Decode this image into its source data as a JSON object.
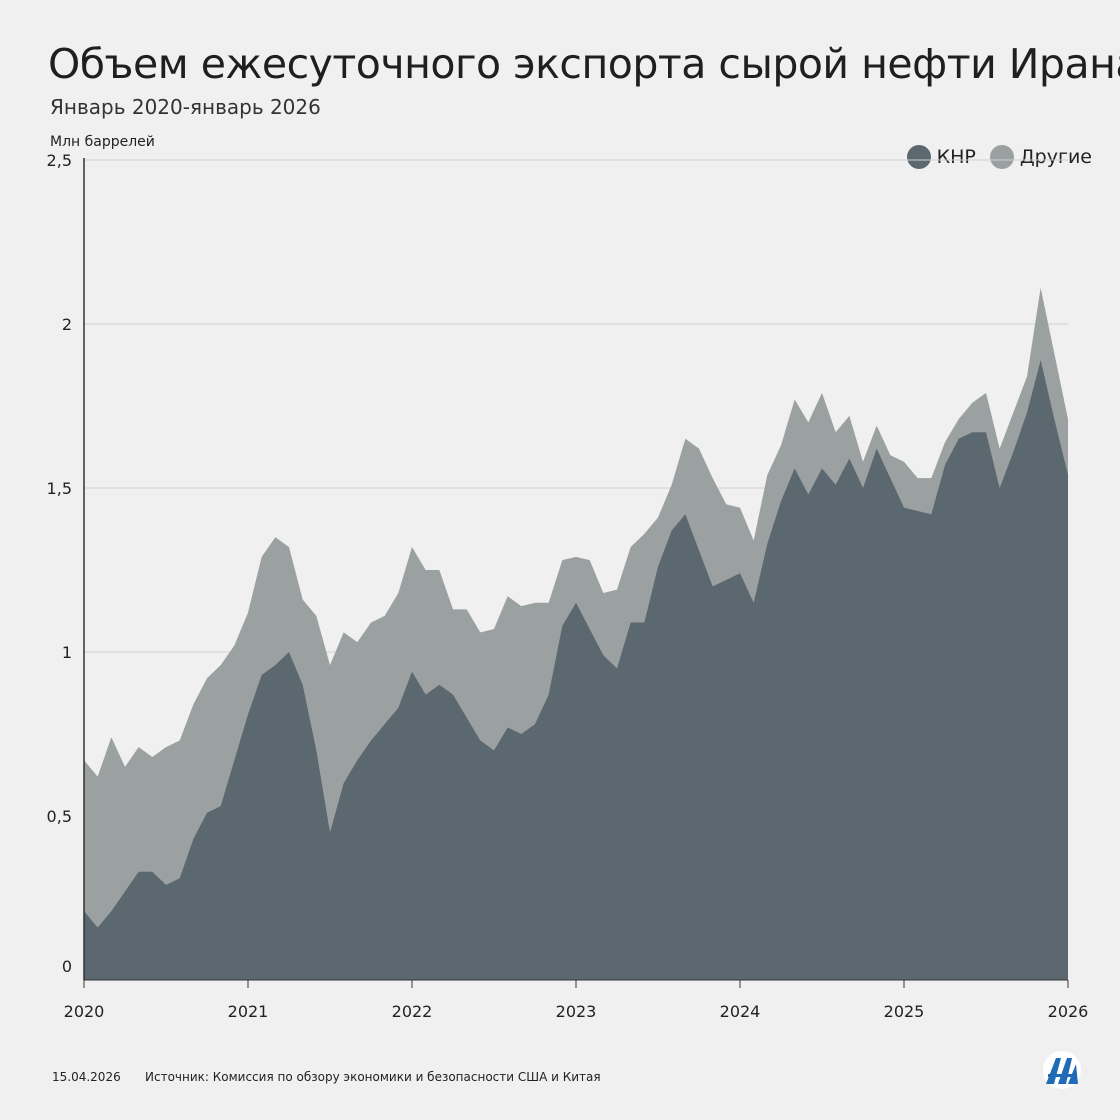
{
  "header": {
    "title": "Объем ежесуточного экспорта сырой нефти Ирана",
    "subtitle": "Январь 2020-январь 2026"
  },
  "footer": {
    "date": "15.04.2026",
    "source": "Источник: Комиссия по обзору экономики и безопасности США и Китая"
  },
  "logo": {
    "text": "AA",
    "icon": "aa-logo-icon"
  },
  "colors": {
    "china": "#5c686f",
    "others": "#9ba1a0",
    "grid": "#cfcfcf",
    "background": "#f0f0f0"
  },
  "chart_data": {
    "type": "area",
    "stacked": true,
    "ylabel": "Млн баррелей",
    "ylim": [
      0,
      2.5
    ],
    "yticks": [
      "0",
      "0,5",
      "1",
      "1,5",
      "2",
      "2,5"
    ],
    "yticks_values": [
      0,
      0.5,
      1,
      1.5,
      2,
      2.5
    ],
    "xticks": [
      "2020",
      "2021",
      "2022",
      "2023",
      "2024",
      "2025",
      "2026"
    ],
    "x_start": "2020-01",
    "x_end": "2026-01",
    "legend_position": "top-right",
    "grid": true,
    "series": [
      {
        "name": "КНР",
        "color": "#5c686f",
        "values": [
          0.21,
          0.16,
          0.21,
          0.27,
          0.33,
          0.33,
          0.29,
          0.31,
          0.43,
          0.51,
          0.53,
          0.67,
          0.81,
          0.93,
          0.96,
          1.0,
          0.9,
          0.7,
          0.45,
          0.6,
          0.67,
          0.73,
          0.78,
          0.83,
          0.94,
          0.87,
          0.9,
          0.87,
          0.8,
          0.73,
          0.7,
          0.77,
          0.75,
          0.78,
          0.87,
          1.08,
          1.15,
          1.07,
          0.99,
          0.95,
          1.09,
          1.09,
          1.26,
          1.37,
          1.42,
          1.31,
          1.2,
          1.22,
          1.24,
          1.15,
          1.33,
          1.46,
          1.56,
          1.48,
          1.56,
          1.51,
          1.59,
          1.5,
          1.62,
          1.53,
          1.44,
          1.43,
          1.42,
          1.57,
          1.65,
          1.67,
          1.67,
          1.5,
          1.61,
          1.73,
          1.89,
          1.71,
          1.54
        ]
      },
      {
        "name": "Другие",
        "color": "#9ba1a0",
        "values": [
          0.46,
          0.46,
          0.53,
          0.38,
          0.38,
          0.35,
          0.42,
          0.42,
          0.41,
          0.41,
          0.43,
          0.35,
          0.31,
          0.36,
          0.39,
          0.32,
          0.26,
          0.41,
          0.51,
          0.46,
          0.36,
          0.36,
          0.33,
          0.35,
          0.38,
          0.38,
          0.35,
          0.26,
          0.33,
          0.33,
          0.37,
          0.4,
          0.39,
          0.37,
          0.28,
          0.2,
          0.14,
          0.21,
          0.19,
          0.24,
          0.23,
          0.27,
          0.15,
          0.14,
          0.23,
          0.31,
          0.33,
          0.23,
          0.2,
          0.19,
          0.21,
          0.17,
          0.21,
          0.22,
          0.23,
          0.16,
          0.13,
          0.08,
          0.07,
          0.07,
          0.14,
          0.1,
          0.11,
          0.07,
          0.06,
          0.09,
          0.12,
          0.12,
          0.12,
          0.11,
          0.22,
          0.2,
          0.17
        ]
      }
    ]
  }
}
